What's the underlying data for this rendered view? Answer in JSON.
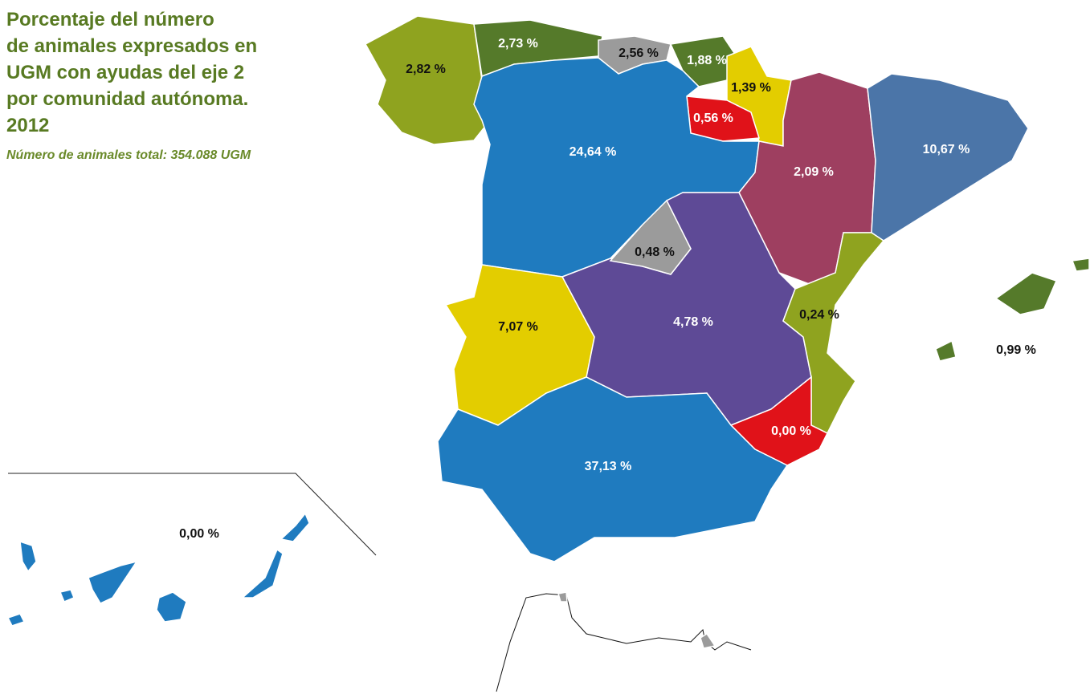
{
  "header": {
    "title_lines": [
      "Porcentaje del número",
      "de animales expresados en",
      "UGM con ayudas del eje 2",
      "por comunidad autónoma.",
      "2012"
    ],
    "subtitle": "Número de animales total: 354.088 UGM"
  },
  "regions": [
    {
      "label": "2,82 %"
    },
    {
      "label": "2,73 %"
    },
    {
      "label": "2,56 %"
    },
    {
      "label": "1,88 %"
    },
    {
      "label": "1,39 %"
    },
    {
      "label": "0,56 %"
    },
    {
      "label": "24,64 %"
    },
    {
      "label": "2,09 %"
    },
    {
      "label": "10,67 %"
    },
    {
      "label": "0,48 %"
    },
    {
      "label": "7,07 %"
    },
    {
      "label": "4,78 %"
    },
    {
      "label": "0,24 %"
    },
    {
      "label": "0,99 %"
    },
    {
      "label": "0,00 %"
    },
    {
      "label": "37,13 %"
    },
    {
      "label": "0,00 %"
    }
  ]
}
